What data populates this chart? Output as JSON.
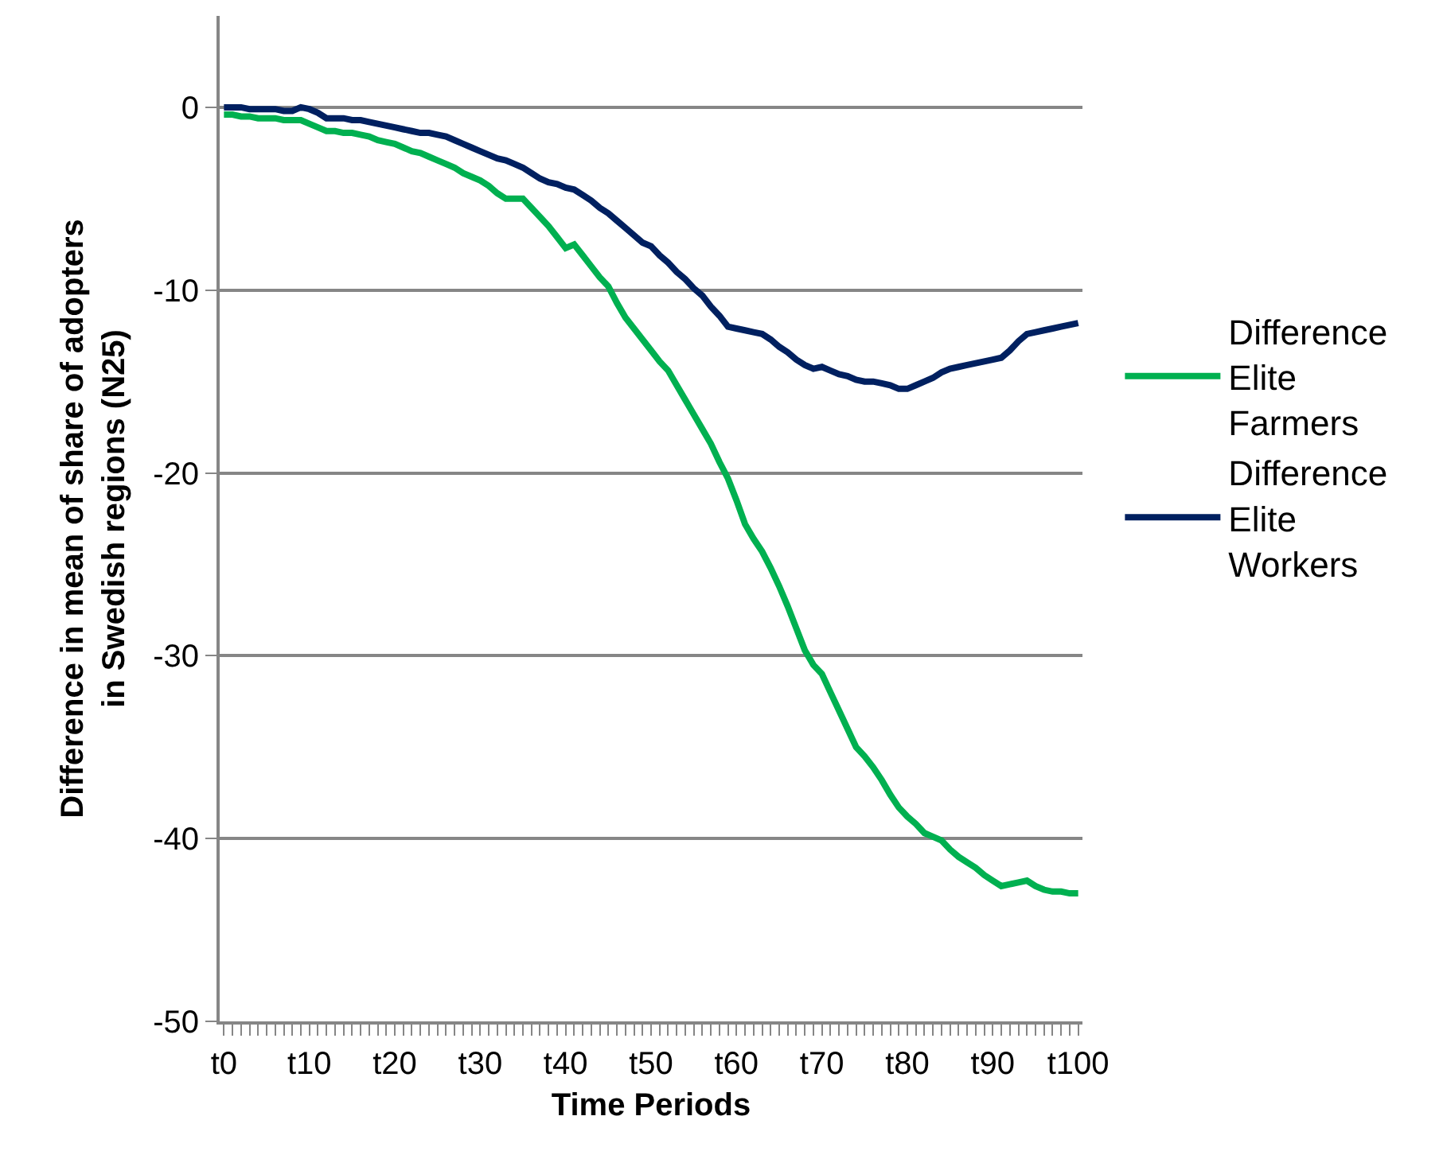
{
  "chart_data": {
    "type": "line",
    "xlabel": "Time Periods",
    "ylabel": "Difference in mean of share of adopters in Swedish regions (N25)",
    "categories": [
      "t0",
      null,
      null,
      null,
      null,
      null,
      null,
      null,
      null,
      null,
      "t10",
      null,
      null,
      null,
      null,
      null,
      null,
      null,
      null,
      null,
      "t20",
      null,
      null,
      null,
      null,
      null,
      null,
      null,
      null,
      null,
      "t30",
      null,
      null,
      null,
      null,
      null,
      null,
      null,
      null,
      null,
      "t40",
      null,
      null,
      null,
      null,
      null,
      null,
      null,
      null,
      null,
      "t50",
      null,
      null,
      null,
      null,
      null,
      null,
      null,
      null,
      null,
      "t60",
      null,
      null,
      null,
      null,
      null,
      null,
      null,
      null,
      null,
      "t70",
      null,
      null,
      null,
      null,
      null,
      null,
      null,
      null,
      null,
      "t80",
      null,
      null,
      null,
      null,
      null,
      null,
      null,
      null,
      null,
      "t90",
      null,
      null,
      null,
      null,
      null,
      null,
      null,
      null,
      null,
      "t100"
    ],
    "ylim": [
      -50,
      5
    ],
    "yticks": [
      -50,
      -40,
      -30,
      -20,
      -10,
      0
    ],
    "grid": "y",
    "legend": "right",
    "marker": "none",
    "line_style": "solid",
    "series": [
      {
        "name": "Difference Elite Farmers",
        "color": "#00b050",
        "values": [
          -0.4,
          -0.4,
          -0.5,
          -0.5,
          -0.6,
          -0.6,
          -0.6,
          -0.7,
          -0.7,
          -0.7,
          -0.9,
          -1.1,
          -1.3,
          -1.3,
          -1.4,
          -1.4,
          -1.5,
          -1.6,
          -1.8,
          -1.9,
          -2.0,
          -2.2,
          -2.4,
          -2.5,
          -2.7,
          -2.9,
          -3.1,
          -3.3,
          -3.6,
          -3.8,
          -4.0,
          -4.3,
          -4.7,
          -5.0,
          -5.0,
          -5.0,
          -5.5,
          -6.0,
          -6.5,
          -7.1,
          -7.7,
          -7.5,
          -8.1,
          -8.7,
          -9.3,
          -9.8,
          -10.7,
          -11.5,
          -12.1,
          -12.7,
          -13.3,
          -13.9,
          -14.4,
          -15.2,
          -16.0,
          -16.8,
          -17.6,
          -18.4,
          -19.4,
          -20.3,
          -21.5,
          -22.8,
          -23.6,
          -24.3,
          -25.2,
          -26.2,
          -27.3,
          -28.5,
          -29.7,
          -30.5,
          -31.0,
          -32.0,
          -33.0,
          -34.0,
          -35.0,
          -35.5,
          -36.1,
          -36.8,
          -37.6,
          -38.3,
          -38.8,
          -39.2,
          -39.7,
          -39.9,
          -40.1,
          -40.6,
          -41.0,
          -41.3,
          -41.6,
          -42.0,
          -42.3,
          -42.6,
          -42.5,
          -42.4,
          -42.3,
          -42.6,
          -42.8,
          -42.9,
          -42.9,
          -43.0,
          -43.0
        ]
      },
      {
        "name": "Difference Elite Workers",
        "color": "#002060",
        "values": [
          0.0,
          0.0,
          0.0,
          -0.1,
          -0.1,
          -0.1,
          -0.1,
          -0.2,
          -0.2,
          0.0,
          -0.1,
          -0.3,
          -0.6,
          -0.6,
          -0.6,
          -0.7,
          -0.7,
          -0.8,
          -0.9,
          -1.0,
          -1.1,
          -1.2,
          -1.3,
          -1.4,
          -1.4,
          -1.5,
          -1.6,
          -1.8,
          -2.0,
          -2.2,
          -2.4,
          -2.6,
          -2.8,
          -2.9,
          -3.1,
          -3.3,
          -3.6,
          -3.9,
          -4.1,
          -4.2,
          -4.4,
          -4.5,
          -4.8,
          -5.1,
          -5.5,
          -5.8,
          -6.2,
          -6.6,
          -7.0,
          -7.4,
          -7.6,
          -8.1,
          -8.5,
          -9.0,
          -9.4,
          -9.9,
          -10.3,
          -10.9,
          -11.4,
          -12.0,
          -12.1,
          -12.2,
          -12.3,
          -12.4,
          -12.7,
          -13.1,
          -13.4,
          -13.8,
          -14.1,
          -14.3,
          -14.2,
          -14.4,
          -14.6,
          -14.7,
          -14.9,
          -15.0,
          -15.0,
          -15.1,
          -15.2,
          -15.4,
          -15.4,
          -15.2,
          -15.0,
          -14.8,
          -14.5,
          -14.3,
          -14.2,
          -14.1,
          -14.0,
          -13.9,
          -13.8,
          -13.7,
          -13.3,
          -12.8,
          -12.4,
          -12.3,
          -12.2,
          -12.1,
          -12.0,
          -11.9,
          -11.8
        ]
      }
    ]
  }
}
